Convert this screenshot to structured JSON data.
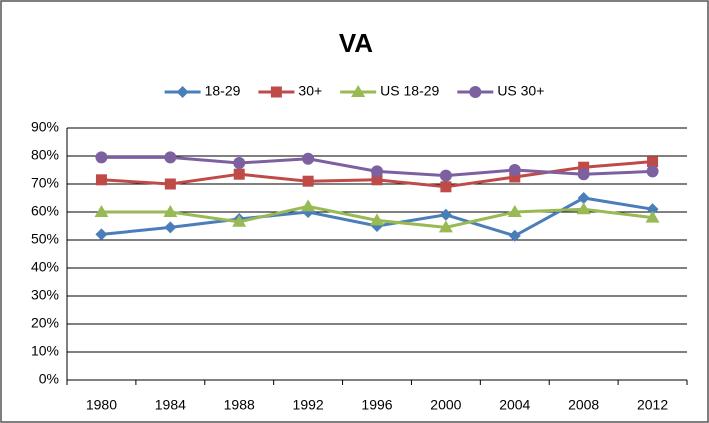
{
  "chart_data": {
    "type": "line",
    "title": "VA",
    "categories": [
      "1980",
      "1984",
      "1988",
      "1992",
      "1996",
      "2000",
      "2004",
      "2008",
      "2012"
    ],
    "series": [
      {
        "name": "18-29",
        "color": "#4a7ebb",
        "marker": "diamond",
        "values": [
          52,
          54.5,
          57.5,
          60,
          55,
          59,
          51.5,
          65,
          61
        ]
      },
      {
        "name": "30+",
        "color": "#be4b48",
        "marker": "square",
        "values": [
          71.5,
          70,
          73.5,
          71,
          71.5,
          69,
          72.5,
          76,
          78
        ]
      },
      {
        "name": "US 18-29",
        "color": "#98b954",
        "marker": "triangle",
        "values": [
          60,
          60,
          56.5,
          62,
          57,
          54.5,
          60,
          61,
          58
        ]
      },
      {
        "name": "US 30+",
        "color": "#7d60a0",
        "marker": "circle",
        "values": [
          79.5,
          79.5,
          77.5,
          79,
          74.5,
          73,
          75,
          73.5,
          74.5
        ]
      }
    ],
    "ylim": [
      0,
      90
    ],
    "yticks": [
      {
        "value": 0,
        "label": "0%"
      },
      {
        "value": 10,
        "label": "10%"
      },
      {
        "value": 20,
        "label": "20%"
      },
      {
        "value": 30,
        "label": "30%"
      },
      {
        "value": 40,
        "label": "40%"
      },
      {
        "value": 50,
        "label": "50%"
      },
      {
        "value": 60,
        "label": "60%"
      },
      {
        "value": 70,
        "label": "70%"
      },
      {
        "value": 80,
        "label": "80%"
      },
      {
        "value": 90,
        "label": "90%"
      }
    ],
    "grid": true,
    "legend": "top"
  }
}
